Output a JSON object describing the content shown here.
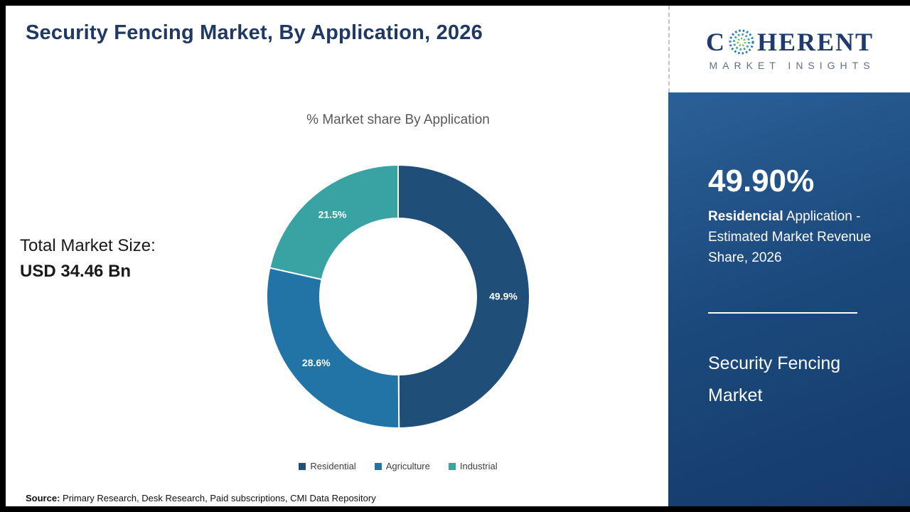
{
  "page": {
    "title": "Security Fencing Market, By Application, 2026",
    "total_market_label": "Total Market Size:",
    "total_market_value": "USD 34.46 Bn",
    "source_label": "Source:",
    "source_text": " Primary Research, Desk Research, Paid subscriptions, CMI Data Repository"
  },
  "sidebar": {
    "stat_value": "49.90%",
    "stat_label_bold": "Residencial",
    "stat_label_rest": " Application - Estimated Market Revenue Share, 2026",
    "market_name": "Security Fencing Market",
    "logo_text_main_left": "C",
    "logo_text_main_right": "HERENT",
    "logo_text_sub": "MARKET INSIGHTS"
  },
  "chart_data": {
    "type": "pie",
    "donut": true,
    "title": "% Market share By Application",
    "categories": [
      "Residential",
      "Agriculture",
      "Industrial"
    ],
    "values": [
      49.9,
      28.6,
      21.5
    ],
    "labels": [
      "49.9%",
      "28.6%",
      "21.5%"
    ],
    "colors": [
      "#1f4e79",
      "#2273a6",
      "#39a3a3"
    ],
    "legend_position": "bottom",
    "start_angle_deg": -90,
    "direction": "clockwise"
  }
}
